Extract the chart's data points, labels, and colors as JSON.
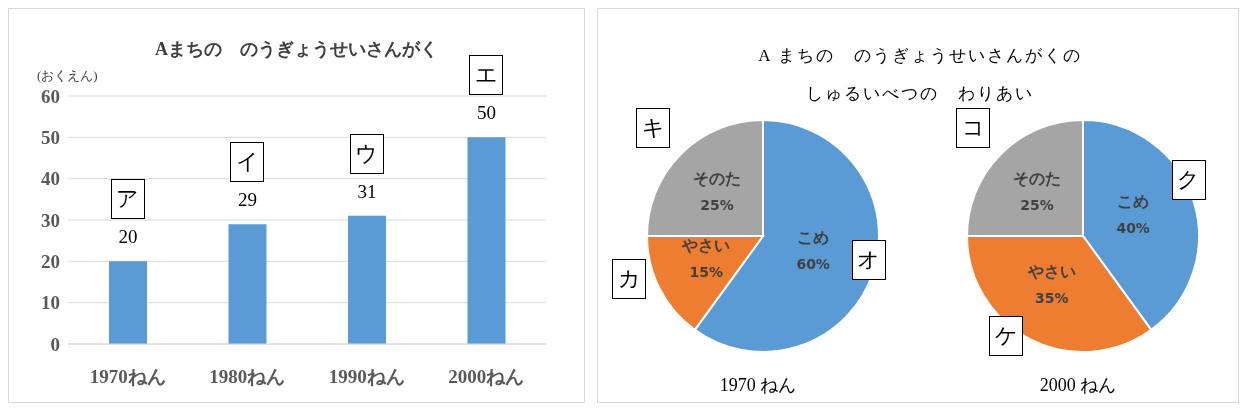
{
  "chart_data": [
    {
      "type": "bar",
      "title": "Aまちの　のうぎょうせいさんがく",
      "ylabel": "(おくえん)",
      "categories": [
        "1970ねん",
        "1980ねん",
        "1990ねん",
        "2000ねん"
      ],
      "values": [
        20,
        29,
        31,
        50
      ],
      "color": "#5b9bd5",
      "ylim": [
        0,
        60
      ],
      "yticks": [
        0,
        10,
        20,
        30,
        40,
        50,
        60
      ],
      "grid": "y",
      "data_labels": true,
      "annotations": [
        "ア",
        "イ",
        "ウ",
        "エ"
      ]
    },
    {
      "type": "pie",
      "title": "A まちの　のうぎょうせいさんがくのしゅるいべつの　わりあい",
      "xlabel": "1970 ねん",
      "categories": [
        "こめ",
        "やさい",
        "そのた"
      ],
      "values": [
        60,
        15,
        25
      ],
      "value_labels": [
        "60%",
        "15%",
        "25%"
      ],
      "colors": [
        "#5b9bd5",
        "#ed7d31",
        "#a5a5a5"
      ],
      "annotations": [
        "オ",
        "カ",
        "キ"
      ]
    },
    {
      "type": "pie",
      "xlabel": "2000 ねん",
      "categories": [
        "こめ",
        "やさい",
        "そのた"
      ],
      "values": [
        40,
        35,
        25
      ],
      "value_labels": [
        "40%",
        "35%",
        "25%"
      ],
      "colors": [
        "#5b9bd5",
        "#ed7d31",
        "#a5a5a5"
      ],
      "annotations": [
        "ク",
        "ケ",
        "コ"
      ]
    }
  ]
}
